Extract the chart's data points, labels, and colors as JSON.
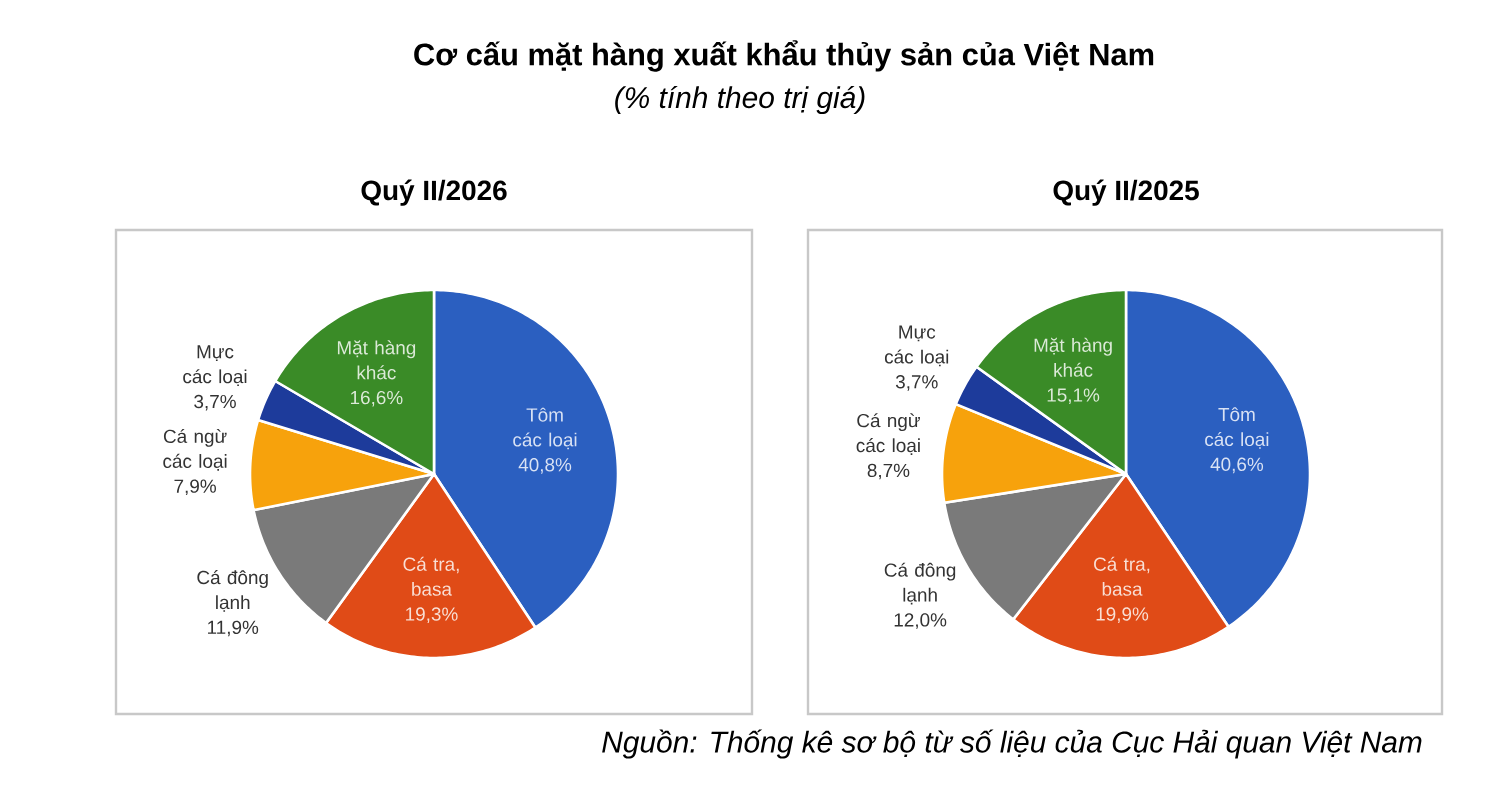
{
  "chart_data": [
    {
      "type": "other",
      "title": "Cơ cấu mặt hàng xuất khẩu thủy sản của Việt Nam",
      "subtitle": "(% tính theo trị giá)",
      "annotations": [
        "Nguồn: Thống kê sơ bộ từ số liệu của Cục Hải quan Việt Nam"
      ]
    },
    {
      "type": "pie",
      "title": "Quý II/2026",
      "categories": [
        "Tôm các loại",
        "Cá tra, basa",
        "Cá đông lạnh",
        "Cá ngừ các loại",
        "Mực các loại",
        "Mặt hàng khác"
      ],
      "values": [
        40.8,
        19.3,
        11.9,
        7.9,
        3.7,
        16.6
      ],
      "value_labels": [
        "40,8%",
        "19,3%",
        "11,9%",
        "7,9%",
        "3,7%",
        "16,6%"
      ],
      "colors": [
        "#2b5fc0",
        "#e04b17",
        "#7a7a7a",
        "#f7a20c",
        "#1d3b9b",
        "#3a8b27"
      ]
    },
    {
      "type": "pie",
      "title": "Quý II/2025",
      "categories": [
        "Tôm các loại",
        "Cá tra, basa",
        "Cá đông lạnh",
        "Cá ngừ các loại",
        "Mực các loại",
        "Mặt hàng khác"
      ],
      "values": [
        40.6,
        19.9,
        12.0,
        8.7,
        3.7,
        15.1
      ],
      "value_labels": [
        "40,6%",
        "19,9%",
        "12,0%",
        "8,7%",
        "3,7%",
        "15,1%"
      ],
      "colors": [
        "#2b5fc0",
        "#e04b17",
        "#7a7a7a",
        "#f7a20c",
        "#1d3b9b",
        "#3a8b27"
      ]
    }
  ]
}
